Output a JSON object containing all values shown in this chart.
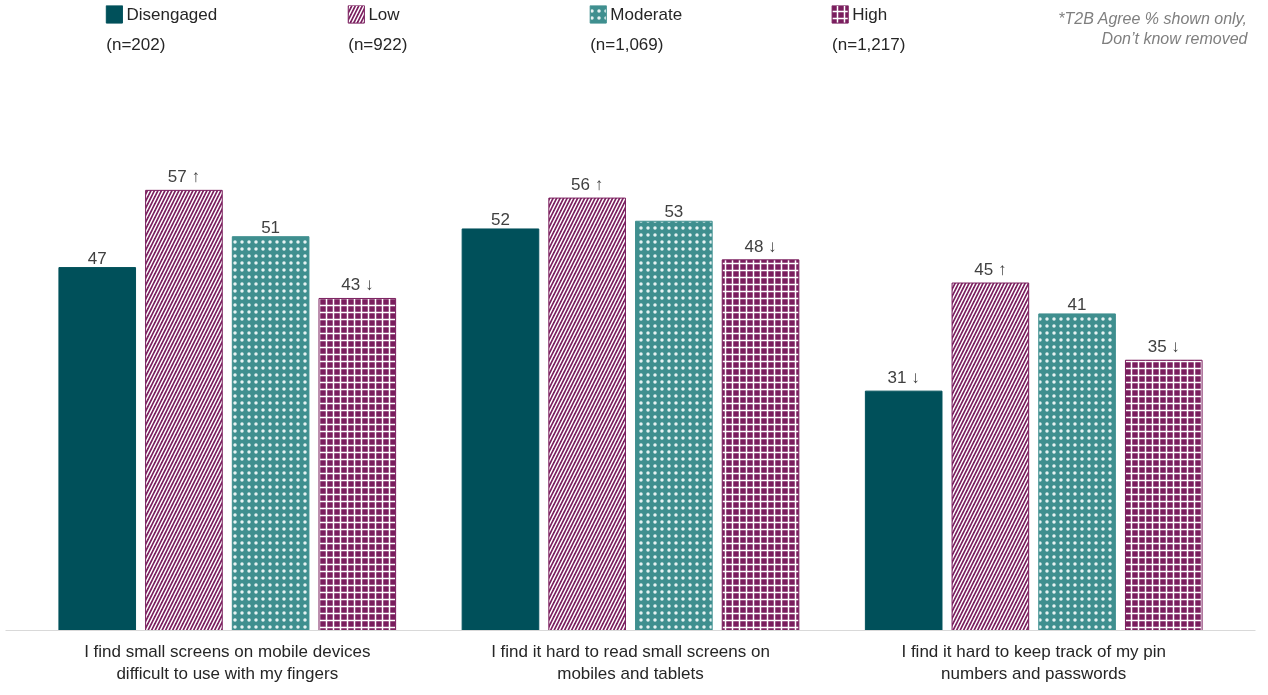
{
  "chart_data": {
    "type": "bar",
    "categories": [
      "I find small screens on mobile devices difficult to use with my fingers",
      "I find it hard to read small screens on mobiles and tablets",
      "I find it hard to keep track of my pin numbers and passwords"
    ],
    "series": [
      {
        "name": "Disengaged\n(n=202)",
        "color": "#00505a",
        "values": [
          47,
          52,
          31
        ],
        "value_labels": [
          "47",
          "52",
          "31 ↓"
        ]
      },
      {
        "name": "Low\n(n=922)",
        "color": "#7a1e5e",
        "values": [
          57,
          56,
          45
        ],
        "value_labels": [
          "57 ↑",
          "56 ↑",
          "45 ↑"
        ]
      },
      {
        "name": "Moderate\n(n=1,069)",
        "color": "#3f8f8f",
        "values": [
          51,
          53,
          41
        ],
        "value_labels": [
          "51",
          "53",
          "41"
        ]
      },
      {
        "name": "High\n(n=1,217)",
        "color": "#7a1e5e",
        "values": [
          43,
          48,
          35
        ],
        "value_labels": [
          "43 ↓",
          "48 ↓",
          "35 ↓"
        ]
      }
    ],
    "grid": false,
    "legend": "top",
    "annotations": [
      "*T2B Agree % shown only,\nDon’t know removed"
    ]
  }
}
